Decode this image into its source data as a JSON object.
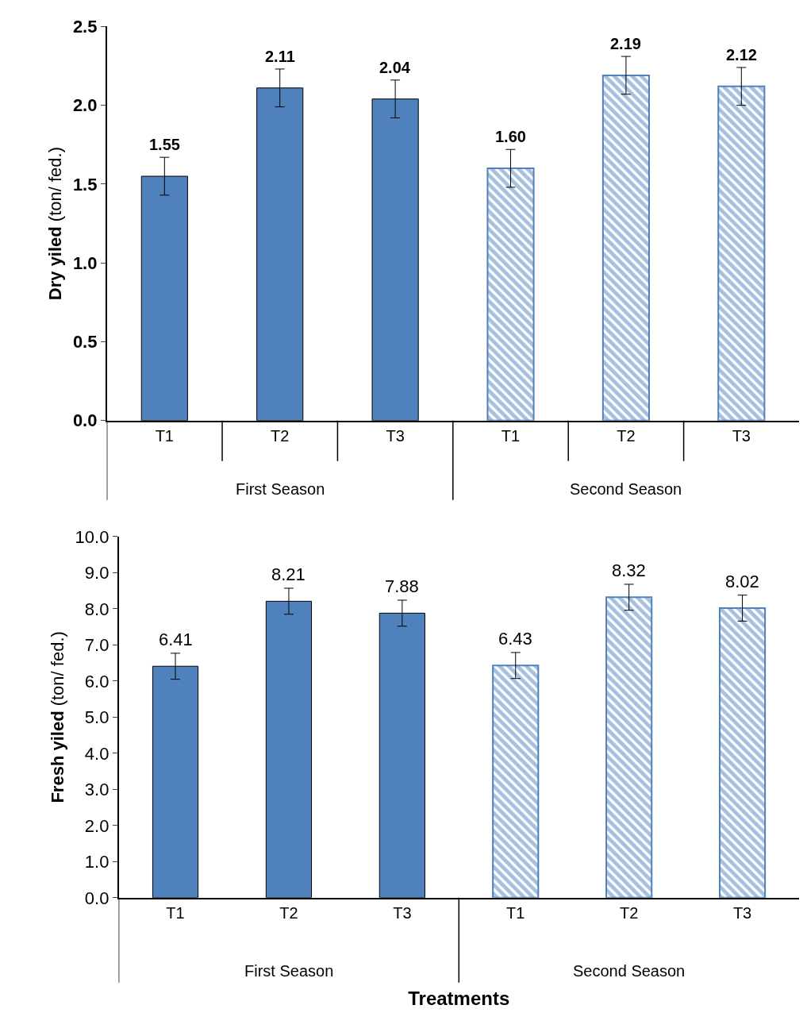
{
  "chart_data": [
    {
      "type": "bar",
      "ylabel": "Dry yiled (ton/ fed.)",
      "categories": [
        "T1",
        "T2",
        "T3",
        "T1",
        "T2",
        "T3"
      ],
      "annotations": [
        "First Season",
        "Second Season"
      ],
      "series": [
        {
          "color": "#4f81bd",
          "values": [
            1.55,
            2.11,
            2.04,
            null,
            null,
            null
          ],
          "errors": [
            0.12,
            0.12,
            0.12,
            null,
            null,
            null
          ],
          "value_labels": [
            "1.55",
            "2.11",
            "2.04",
            null,
            null,
            null
          ]
        },
        {
          "color": "#4f81bd",
          "values": [
            null,
            null,
            null,
            1.6,
            2.19,
            2.12
          ],
          "errors": [
            null,
            null,
            null,
            0.12,
            0.12,
            0.12
          ],
          "value_labels": [
            null,
            null,
            null,
            "1.60",
            "2.19",
            "2.12"
          ]
        }
      ],
      "ylim": [
        0,
        2.5
      ],
      "yticks": [
        {
          "value": 0,
          "label": "0.0"
        },
        {
          "value": 0.5,
          "label": "0.5"
        },
        {
          "value": 1,
          "label": "1.0"
        },
        {
          "value": 1.5,
          "label": "1.5"
        },
        {
          "value": 2,
          "label": "2.0"
        },
        {
          "value": 2.5,
          "label": "2.5"
        }
      ],
      "legend": false
    },
    {
      "type": "bar",
      "ylabel": "Fresh yiled (ton/ fed.)",
      "xlabel": "Treatments",
      "categories": [
        "T1",
        "T2",
        "T3",
        "T1",
        "T2",
        "T3"
      ],
      "annotations": [
        "First Season",
        "Second Season"
      ],
      "series": [
        {
          "color": "#4f81bd",
          "values": [
            6.41,
            8.21,
            7.88,
            null,
            null,
            null
          ],
          "errors": [
            0.36,
            0.36,
            0.36,
            null,
            null,
            null
          ],
          "value_labels": [
            "6.41",
            "8.21",
            "7.88",
            null,
            null,
            null
          ]
        },
        {
          "color": "#4f81bd",
          "values": [
            null,
            null,
            null,
            6.43,
            8.32,
            8.02
          ],
          "errors": [
            null,
            null,
            null,
            0.36,
            0.36,
            0.36
          ],
          "value_labels": [
            null,
            null,
            null,
            "6.43",
            "8.32",
            "8.02"
          ]
        }
      ],
      "ylim": [
        0,
        10
      ],
      "yticks": [
        {
          "value": 0,
          "label": "0.0"
        },
        {
          "value": 1,
          "label": "1.0"
        },
        {
          "value": 2,
          "label": "2.0"
        },
        {
          "value": 3,
          "label": "3.0"
        },
        {
          "value": 4,
          "label": "4.0"
        },
        {
          "value": 5,
          "label": "5.0"
        },
        {
          "value": 6,
          "label": "6.0"
        },
        {
          "value": 7,
          "label": "7.0"
        },
        {
          "value": 8,
          "label": "8.0"
        },
        {
          "value": 9,
          "label": "9.0"
        },
        {
          "value": 10,
          "label": "10.0"
        }
      ],
      "legend": false
    }
  ]
}
